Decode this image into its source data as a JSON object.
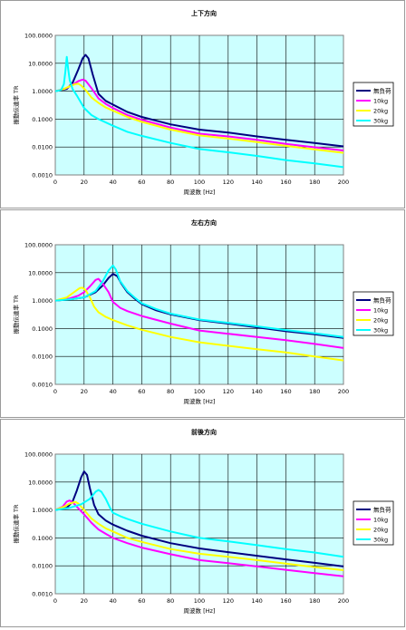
{
  "colors": {
    "plot_bg": "#ccffff",
    "grid": "#000000"
  },
  "chart_data": [
    {
      "type": "line",
      "title": "上下方向",
      "xlabel": "周波数 [Hz]",
      "ylabel": "振動伝達率 TR",
      "xlim": [
        0,
        200
      ],
      "ylim": [
        0.001,
        100
      ],
      "yscale": "log",
      "grid": true,
      "legend_position": "right",
      "x_ticks": [
        "0",
        "20",
        "40",
        "60",
        "80",
        "100",
        "120",
        "140",
        "160",
        "180",
        "200"
      ],
      "y_ticks": [
        "0.0010",
        "0.0100",
        "0.1000",
        "1.0000",
        "10.0000",
        "100.0000"
      ],
      "series": [
        {
          "name": "無負荷",
          "color": "#000080",
          "points": [
            [
              0,
              1.0
            ],
            [
              8,
              1.2
            ],
            [
              12,
              2.0
            ],
            [
              16,
              6.0
            ],
            [
              19,
              15.0
            ],
            [
              21,
              20.0
            ],
            [
              23,
              15.0
            ],
            [
              26,
              4.0
            ],
            [
              30,
              0.8
            ],
            [
              35,
              0.45
            ],
            [
              40,
              0.33
            ],
            [
              50,
              0.18
            ],
            [
              60,
              0.12
            ],
            [
              80,
              0.065
            ],
            [
              100,
              0.042
            ],
            [
              120,
              0.033
            ],
            [
              140,
              0.024
            ],
            [
              160,
              0.018
            ],
            [
              180,
              0.014
            ],
            [
              200,
              0.0105
            ]
          ]
        },
        {
          "name": "10kg",
          "color": "#ff00ff",
          "points": [
            [
              0,
              1.0
            ],
            [
              8,
              1.3
            ],
            [
              12,
              1.7
            ],
            [
              16,
              2.3
            ],
            [
              19,
              2.6
            ],
            [
              21,
              2.4
            ],
            [
              25,
              1.3
            ],
            [
              30,
              0.55
            ],
            [
              35,
              0.35
            ],
            [
              40,
              0.25
            ],
            [
              50,
              0.14
            ],
            [
              60,
              0.095
            ],
            [
              80,
              0.05
            ],
            [
              100,
              0.03
            ],
            [
              120,
              0.024
            ],
            [
              140,
              0.018
            ],
            [
              160,
              0.013
            ],
            [
              180,
              0.0098
            ],
            [
              200,
              0.0075
            ]
          ]
        },
        {
          "name": "20kg",
          "color": "#ffff00",
          "points": [
            [
              0,
              1.0
            ],
            [
              6,
              1.2
            ],
            [
              10,
              1.5
            ],
            [
              14,
              1.8
            ],
            [
              16,
              1.85
            ],
            [
              18,
              1.6
            ],
            [
              21,
              1.1
            ],
            [
              25,
              0.6
            ],
            [
              30,
              0.38
            ],
            [
              35,
              0.26
            ],
            [
              40,
              0.2
            ],
            [
              50,
              0.12
            ],
            [
              60,
              0.08
            ],
            [
              80,
              0.042
            ],
            [
              100,
              0.026
            ],
            [
              120,
              0.02
            ],
            [
              140,
              0.015
            ],
            [
              160,
              0.011
            ],
            [
              180,
              0.0082
            ],
            [
              200,
              0.0062
            ]
          ]
        },
        {
          "name": "30kg",
          "color": "#00ffff",
          "points": [
            [
              0,
              1.0
            ],
            [
              4,
              1.1
            ],
            [
              6,
              1.8
            ],
            [
              7,
              5.0
            ],
            [
              8,
              17.0
            ],
            [
              9,
              6.0
            ],
            [
              10,
              2.5
            ],
            [
              12,
              1.2
            ],
            [
              15,
              0.7
            ],
            [
              20,
              0.25
            ],
            [
              25,
              0.14
            ],
            [
              30,
              0.1
            ],
            [
              40,
              0.058
            ],
            [
              50,
              0.035
            ],
            [
              60,
              0.025
            ],
            [
              80,
              0.014
            ],
            [
              100,
              0.0085
            ],
            [
              120,
              0.0065
            ],
            [
              140,
              0.0048
            ],
            [
              160,
              0.0034
            ],
            [
              180,
              0.0026
            ],
            [
              200,
              0.0019
            ]
          ]
        }
      ]
    },
    {
      "type": "line",
      "title": "左右方向",
      "xlabel": "周波数 [Hz]",
      "ylabel": "振動伝達率 TR",
      "xlim": [
        0,
        200
      ],
      "ylim": [
        0.001,
        100
      ],
      "yscale": "log",
      "grid": true,
      "legend_position": "right",
      "x_ticks": [
        "0",
        "20",
        "40",
        "60",
        "80",
        "100",
        "120",
        "140",
        "160",
        "180",
        "200"
      ],
      "y_ticks": [
        "0.0010",
        "0.0100",
        "0.1000",
        "1.0000",
        "10.0000",
        "100.0000"
      ],
      "series": [
        {
          "name": "無負荷",
          "color": "#000080",
          "points": [
            [
              0,
              1.0
            ],
            [
              10,
              1.1
            ],
            [
              20,
              1.3
            ],
            [
              28,
              2.0
            ],
            [
              33,
              3.5
            ],
            [
              37,
              6.5
            ],
            [
              40,
              9.0
            ],
            [
              43,
              7.5
            ],
            [
              46,
              4.0
            ],
            [
              50,
              2.0
            ],
            [
              55,
              1.2
            ],
            [
              60,
              0.75
            ],
            [
              70,
              0.45
            ],
            [
              80,
              0.32
            ],
            [
              100,
              0.2
            ],
            [
              120,
              0.15
            ],
            [
              140,
              0.11
            ],
            [
              160,
              0.08
            ],
            [
              180,
              0.062
            ],
            [
              200,
              0.046
            ]
          ]
        },
        {
          "name": "10kg",
          "color": "#ff00ff",
          "points": [
            [
              0,
              1.0
            ],
            [
              10,
              1.2
            ],
            [
              16,
              1.5
            ],
            [
              20,
              2.0
            ],
            [
              24,
              3.2
            ],
            [
              28,
              5.5
            ],
            [
              30,
              6.0
            ],
            [
              33,
              4.0
            ],
            [
              37,
              2.0
            ],
            [
              40,
              0.9
            ],
            [
              45,
              0.55
            ],
            [
              50,
              0.42
            ],
            [
              60,
              0.28
            ],
            [
              80,
              0.15
            ],
            [
              100,
              0.085
            ],
            [
              120,
              0.065
            ],
            [
              140,
              0.05
            ],
            [
              160,
              0.038
            ],
            [
              180,
              0.028
            ],
            [
              200,
              0.02
            ]
          ]
        },
        {
          "name": "20kg",
          "color": "#ffff00",
          "points": [
            [
              0,
              1.0
            ],
            [
              8,
              1.3
            ],
            [
              13,
              2.0
            ],
            [
              17,
              2.8
            ],
            [
              19,
              2.9
            ],
            [
              21,
              2.4
            ],
            [
              24,
              1.3
            ],
            [
              27,
              0.6
            ],
            [
              30,
              0.38
            ],
            [
              35,
              0.26
            ],
            [
              40,
              0.2
            ],
            [
              50,
              0.13
            ],
            [
              60,
              0.09
            ],
            [
              80,
              0.05
            ],
            [
              100,
              0.032
            ],
            [
              120,
              0.024
            ],
            [
              140,
              0.018
            ],
            [
              160,
              0.014
            ],
            [
              180,
              0.01
            ],
            [
              200,
              0.0072
            ]
          ]
        },
        {
          "name": "30kg",
          "color": "#00ffff",
          "points": [
            [
              0,
              1.0
            ],
            [
              10,
              1.1
            ],
            [
              20,
              1.3
            ],
            [
              28,
              2.2
            ],
            [
              33,
              5.0
            ],
            [
              37,
              12.0
            ],
            [
              40,
              18.0
            ],
            [
              42,
              13.0
            ],
            [
              45,
              5.0
            ],
            [
              50,
              2.2
            ],
            [
              55,
              1.3
            ],
            [
              60,
              0.8
            ],
            [
              70,
              0.5
            ],
            [
              80,
              0.34
            ],
            [
              100,
              0.21
            ],
            [
              120,
              0.16
            ],
            [
              140,
              0.12
            ],
            [
              160,
              0.088
            ],
            [
              180,
              0.068
            ],
            [
              200,
              0.05
            ]
          ]
        }
      ]
    },
    {
      "type": "line",
      "title": "前後方向",
      "xlabel": "周波数 [Hz]",
      "ylabel": "振動伝達率 TR",
      "xlim": [
        0,
        200
      ],
      "ylim": [
        0.001,
        100
      ],
      "yscale": "log",
      "grid": true,
      "legend_position": "right",
      "x_ticks": [
        "0",
        "20",
        "40",
        "60",
        "80",
        "100",
        "120",
        "140",
        "160",
        "180",
        "200"
      ],
      "y_ticks": [
        "0.0010",
        "0.0100",
        "0.1000",
        "1.0000",
        "10.0000",
        "100.0000"
      ],
      "series": [
        {
          "name": "無負荷",
          "color": "#000080",
          "points": [
            [
              0,
              1.0
            ],
            [
              8,
              1.2
            ],
            [
              12,
              2.0
            ],
            [
              15,
              5.0
            ],
            [
              18,
              15.0
            ],
            [
              20,
              24.0
            ],
            [
              22,
              18.0
            ],
            [
              24,
              6.0
            ],
            [
              27,
              1.5
            ],
            [
              30,
              0.7
            ],
            [
              35,
              0.42
            ],
            [
              40,
              0.3
            ],
            [
              50,
              0.18
            ],
            [
              60,
              0.12
            ],
            [
              80,
              0.065
            ],
            [
              100,
              0.042
            ],
            [
              120,
              0.031
            ],
            [
              140,
              0.023
            ],
            [
              160,
              0.017
            ],
            [
              180,
              0.0128
            ],
            [
              200,
              0.0095
            ]
          ]
        },
        {
          "name": "10kg",
          "color": "#ff00ff",
          "points": [
            [
              0,
              1.0
            ],
            [
              5,
              1.3
            ],
            [
              8,
              2.0
            ],
            [
              10,
              2.2
            ],
            [
              12,
              1.9
            ],
            [
              15,
              1.3
            ],
            [
              20,
              0.7
            ],
            [
              25,
              0.35
            ],
            [
              30,
              0.2
            ],
            [
              35,
              0.14
            ],
            [
              40,
              0.1
            ],
            [
              50,
              0.065
            ],
            [
              60,
              0.045
            ],
            [
              80,
              0.026
            ],
            [
              100,
              0.016
            ],
            [
              120,
              0.0125
            ],
            [
              140,
              0.0095
            ],
            [
              160,
              0.0072
            ],
            [
              180,
              0.0055
            ],
            [
              200,
              0.0042
            ]
          ]
        },
        {
          "name": "20kg",
          "color": "#ffff00",
          "points": [
            [
              0,
              1.0
            ],
            [
              6,
              1.3
            ],
            [
              10,
              1.7
            ],
            [
              14,
              1.95
            ],
            [
              16,
              1.7
            ],
            [
              20,
              1.0
            ],
            [
              25,
              0.5
            ],
            [
              30,
              0.32
            ],
            [
              35,
              0.22
            ],
            [
              40,
              0.17
            ],
            [
              50,
              0.1
            ],
            [
              60,
              0.072
            ],
            [
              80,
              0.04
            ],
            [
              100,
              0.027
            ],
            [
              120,
              0.021
            ],
            [
              140,
              0.016
            ],
            [
              160,
              0.012
            ],
            [
              180,
              0.009
            ],
            [
              200,
              0.007
            ]
          ]
        },
        {
          "name": "30kg",
          "color": "#00ffff",
          "points": [
            [
              0,
              1.0
            ],
            [
              10,
              1.2
            ],
            [
              18,
              1.6
            ],
            [
              24,
              2.5
            ],
            [
              28,
              4.5
            ],
            [
              30,
              5.2
            ],
            [
              32,
              4.5
            ],
            [
              35,
              2.5
            ],
            [
              38,
              1.2
            ],
            [
              40,
              0.8
            ],
            [
              45,
              0.6
            ],
            [
              50,
              0.48
            ],
            [
              60,
              0.32
            ],
            [
              80,
              0.17
            ],
            [
              100,
              0.1
            ],
            [
              120,
              0.075
            ],
            [
              140,
              0.055
            ],
            [
              160,
              0.04
            ],
            [
              180,
              0.03
            ],
            [
              200,
              0.021
            ]
          ]
        }
      ]
    }
  ]
}
